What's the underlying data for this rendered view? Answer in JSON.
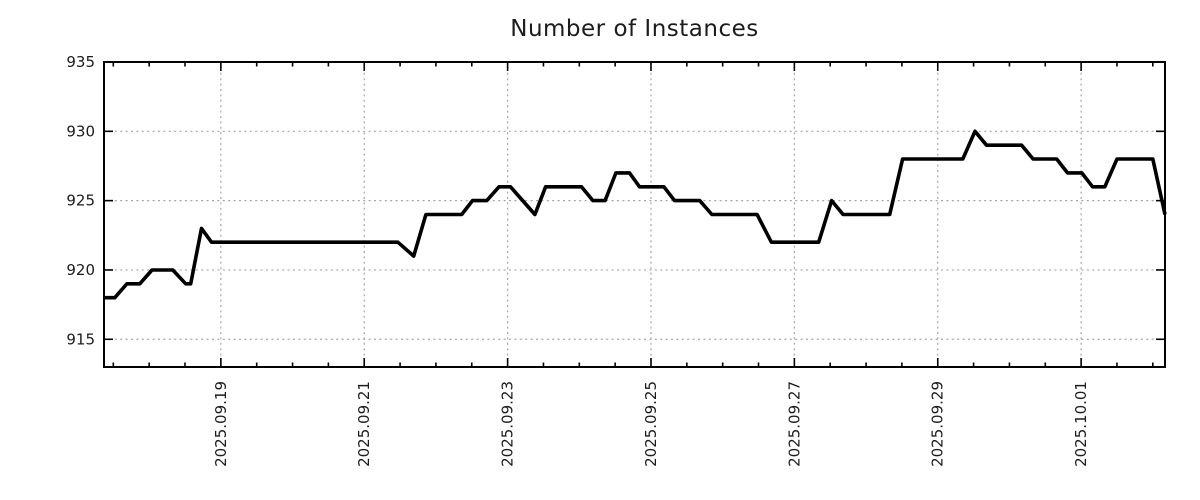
{
  "page": {
    "background": "#ffffff"
  },
  "chart_data": {
    "type": "line",
    "title": "Number of Instances",
    "xlabel": "",
    "ylabel": "",
    "legend": null,
    "grid": "dotted-major",
    "axis_color": "#000000",
    "grid_color": "#a6a6a6",
    "line_color": "#000000",
    "x_unit": "days since 2025.09.17 00:00 (derived from axis date labels)",
    "xlim": [
      0.37,
      15.17
    ],
    "ylim": [
      913,
      935
    ],
    "y_ticks": [
      915,
      920,
      925,
      930,
      935
    ],
    "x_major_ticks": [
      {
        "t": 2,
        "label": "2025.09.19"
      },
      {
        "t": 4,
        "label": "2025.09.21"
      },
      {
        "t": 6,
        "label": "2025.09.23"
      },
      {
        "t": 8,
        "label": "2025.09.25"
      },
      {
        "t": 10,
        "label": "2025.09.27"
      },
      {
        "t": 12,
        "label": "2025.09.29"
      },
      {
        "t": 14,
        "label": "2025.10.01"
      }
    ],
    "x_minor_step": 0.5,
    "series": [
      {
        "name": "instances",
        "points": [
          [
            0.37,
            918
          ],
          [
            0.52,
            918
          ],
          [
            0.69,
            919
          ],
          [
            0.87,
            919
          ],
          [
            1.04,
            920
          ],
          [
            1.33,
            920
          ],
          [
            1.51,
            919
          ],
          [
            1.58,
            919
          ],
          [
            1.73,
            923
          ],
          [
            1.87,
            922
          ],
          [
            4.47,
            922
          ],
          [
            4.69,
            921
          ],
          [
            4.86,
            924
          ],
          [
            5.36,
            924
          ],
          [
            5.51,
            925
          ],
          [
            5.71,
            925
          ],
          [
            5.88,
            926
          ],
          [
            6.04,
            926
          ],
          [
            6.38,
            924
          ],
          [
            6.53,
            926
          ],
          [
            7.03,
            926
          ],
          [
            7.19,
            925
          ],
          [
            7.36,
            925
          ],
          [
            7.51,
            927
          ],
          [
            7.7,
            927
          ],
          [
            7.84,
            926
          ],
          [
            8.18,
            926
          ],
          [
            8.33,
            925
          ],
          [
            8.68,
            925
          ],
          [
            8.85,
            924
          ],
          [
            9.48,
            924
          ],
          [
            9.68,
            922
          ],
          [
            10.34,
            922
          ],
          [
            10.52,
            925
          ],
          [
            10.68,
            924
          ],
          [
            11.33,
            924
          ],
          [
            11.51,
            928
          ],
          [
            12.35,
            928
          ],
          [
            12.52,
            930
          ],
          [
            12.68,
            929
          ],
          [
            13.17,
            929
          ],
          [
            13.33,
            928
          ],
          [
            13.66,
            928
          ],
          [
            13.81,
            927
          ],
          [
            14.01,
            927
          ],
          [
            14.16,
            926
          ],
          [
            14.33,
            926
          ],
          [
            14.5,
            928
          ],
          [
            15.0,
            928
          ],
          [
            15.17,
            924
          ]
        ]
      }
    ]
  }
}
